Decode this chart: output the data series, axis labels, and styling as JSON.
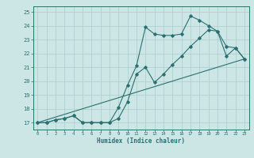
{
  "xlabel": "Humidex (Indice chaleur)",
  "ylabel": "",
  "background_color": "#cce5e5",
  "grid_color": "#b0d0d0",
  "line_color": "#2a7070",
  "xlim": [
    -0.5,
    23.5
  ],
  "ylim": [
    16.5,
    25.4
  ],
  "xticks": [
    0,
    1,
    2,
    3,
    4,
    5,
    6,
    7,
    8,
    9,
    10,
    11,
    12,
    13,
    14,
    15,
    16,
    17,
    18,
    19,
    20,
    21,
    22,
    23
  ],
  "yticks": [
    17,
    18,
    19,
    20,
    21,
    22,
    23,
    24,
    25
  ],
  "line1_x": [
    0,
    1,
    2,
    3,
    4,
    5,
    6,
    7,
    8,
    9,
    10,
    11,
    12,
    13,
    14,
    15,
    16,
    17,
    18,
    19,
    20,
    21,
    22,
    23
  ],
  "line1_y": [
    17.0,
    17.0,
    17.2,
    17.3,
    17.5,
    17.0,
    17.0,
    17.0,
    17.0,
    18.1,
    19.7,
    21.1,
    23.9,
    23.4,
    23.3,
    23.3,
    23.4,
    24.7,
    24.4,
    24.0,
    23.6,
    22.5,
    22.4,
    21.6
  ],
  "line2_x": [
    0,
    1,
    2,
    3,
    4,
    5,
    6,
    7,
    8,
    9,
    10,
    11,
    12,
    13,
    14,
    15,
    16,
    17,
    18,
    19,
    20,
    21,
    22,
    23
  ],
  "line2_y": [
    17.0,
    17.0,
    17.2,
    17.3,
    17.5,
    17.0,
    17.0,
    17.0,
    17.0,
    17.3,
    18.5,
    20.5,
    21.0,
    19.9,
    20.5,
    21.2,
    21.8,
    22.5,
    23.1,
    23.7,
    23.6,
    21.8,
    22.4,
    21.6
  ],
  "line3_x": [
    0,
    23
  ],
  "line3_y": [
    17.0,
    21.6
  ]
}
